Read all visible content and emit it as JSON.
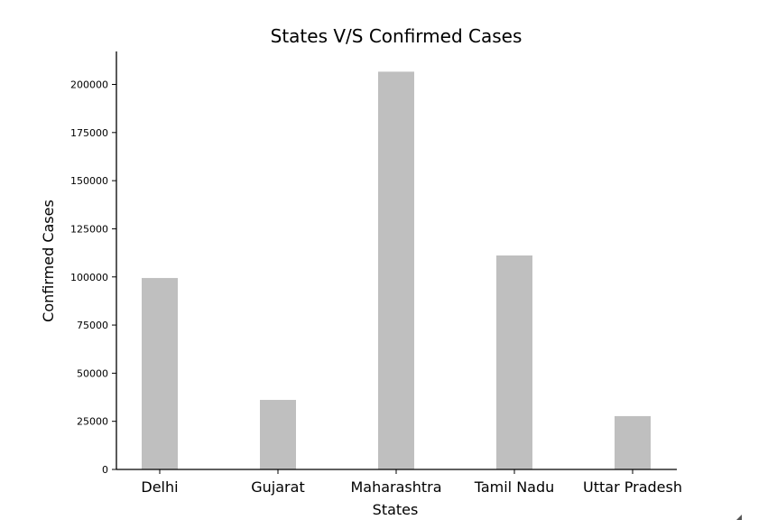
{
  "chart_data": {
    "type": "bar",
    "title": "States V/S Confirmed Cases",
    "xlabel": "States",
    "ylabel": "Confirmed Cases",
    "categories": [
      "Delhi",
      "Gujarat",
      "Maharashtra",
      "Tamil Nadu",
      "Uttar Pradesh"
    ],
    "values": [
      99444,
      36123,
      206619,
      111151,
      27707
    ],
    "ylim": [
      0,
      217000
    ],
    "yticks": [
      "0",
      "25000",
      "50000",
      "75000",
      "100000",
      "125000",
      "150000",
      "175000",
      "200000"
    ],
    "bar_color": "#bfbfbf",
    "grid": false,
    "legend": "none"
  }
}
